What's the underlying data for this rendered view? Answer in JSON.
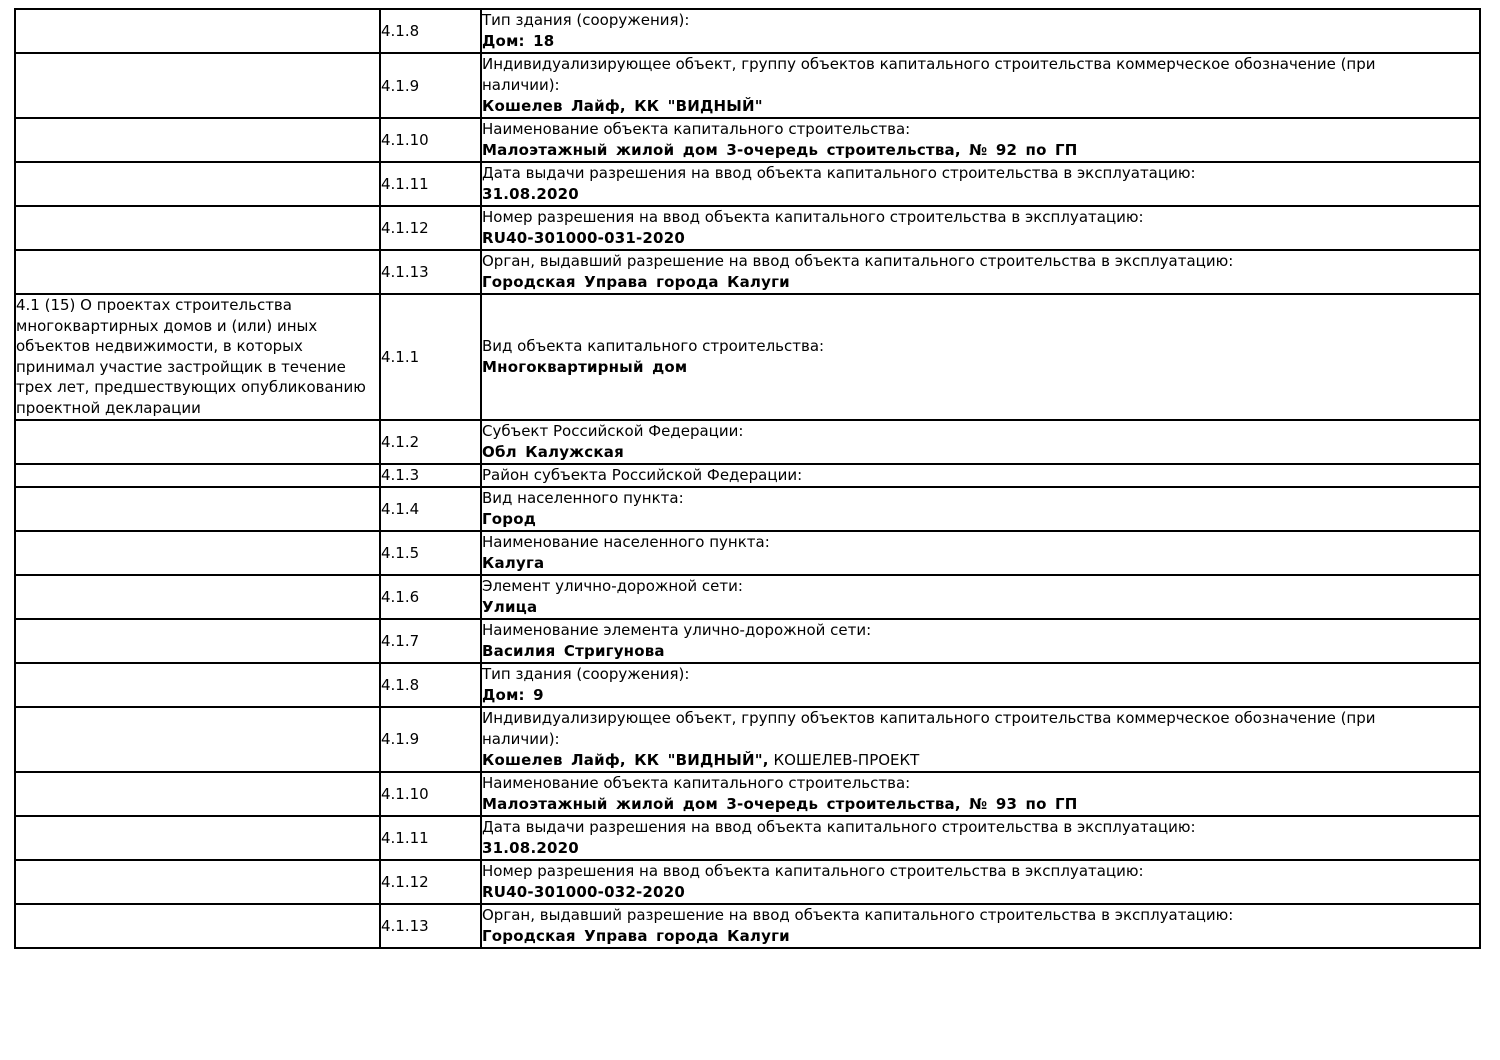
{
  "page": {
    "background_color": "#ffffff",
    "text_color": "#000000",
    "border_color": "#000000"
  },
  "table": {
    "rows": [
      {
        "num": "4.1.8",
        "label": "Тип здания (сооружения):",
        "value": "Дом: 18"
      },
      {
        "num": "4.1.9",
        "label": "Индивидуализирующее объект, группу объектов капитального строительства коммерческое обозначение (при\nналичии):",
        "value": "Кошелев Лайф, КК \"ВИДНЫЙ\""
      },
      {
        "num": "4.1.10",
        "label": "Наименование объекта капитального строительства:",
        "value": "Малоэтажный жилой дом 3-очередь строительства, № 92 по ГП"
      },
      {
        "num": "4.1.11",
        "label": "Дата выдачи разрешения на ввод объекта капитального строительства в эксплуатацию:",
        "value": "31.08.2020"
      },
      {
        "num": "4.1.12",
        "label": "Номер разрешения на ввод объекта капитального строительства в эксплуатацию:",
        "value": "RU40-301000-031-2020"
      },
      {
        "num": "4.1.13",
        "label": "Орган, выдавший разрешение на ввод объекта капитального строительства в эксплуатацию:",
        "value": "Городская Управа города Калуги"
      },
      {
        "section": "4.1 (15) О проектах строительства\nмногоквартирных домов и (или) иных\nобъектов недвижимости, в которых\nпринимал участие застройщик в течение\nтрех лет, предшествующих опубликованию\nпроектной декларации",
        "num": "4.1.1",
        "label": "Вид объекта капитального строительства:",
        "value": "Многоквартирный дом"
      },
      {
        "num": "4.1.2",
        "label": "Субъект Российской Федерации:",
        "value": "Обл Калужская"
      },
      {
        "num": "4.1.3",
        "label": "Район субъекта Российской Федерации:",
        "value": ""
      },
      {
        "num": "4.1.4",
        "label": "Вид населенного пункта:",
        "value": "Город"
      },
      {
        "num": "4.1.5",
        "label": "Наименование населенного пункта:",
        "value": "Калуга"
      },
      {
        "num": "4.1.6",
        "label": "Элемент улично-дорожной сети:",
        "value": "Улица"
      },
      {
        "num": "4.1.7",
        "label": "Наименование элемента улично-дорожной сети:",
        "value": "Василия Стригунова"
      },
      {
        "num": "4.1.8",
        "label": "Тип здания (сооружения):",
        "value": "Дом: 9"
      },
      {
        "num": "4.1.9",
        "label": "Индивидуализирующее объект, группу объектов капитального строительства коммерческое обозначение (при\nналичии):",
        "value": "Кошелев Лайф, КК \"ВИДНЫЙ\",",
        "value_suffix": " КОШЕЛЕВ-ПРОЕКТ"
      },
      {
        "num": "4.1.10",
        "label": "Наименование объекта капитального строительства:",
        "value": "Малоэтажный жилой дом 3-очередь строительства, № 93 по ГП"
      },
      {
        "num": "4.1.11",
        "label": "Дата выдачи разрешения на ввод объекта капитального строительства в эксплуатацию:",
        "value": "31.08.2020"
      },
      {
        "num": "4.1.12",
        "label": "Номер разрешения на ввод объекта капитального строительства в эксплуатацию:",
        "value": "RU40-301000-032-2020"
      },
      {
        "num": "4.1.13",
        "label": "Орган, выдавший разрешение на ввод объекта капитального строительства в эксплуатацию:",
        "value": "Городская Управа города Калуги"
      }
    ]
  }
}
